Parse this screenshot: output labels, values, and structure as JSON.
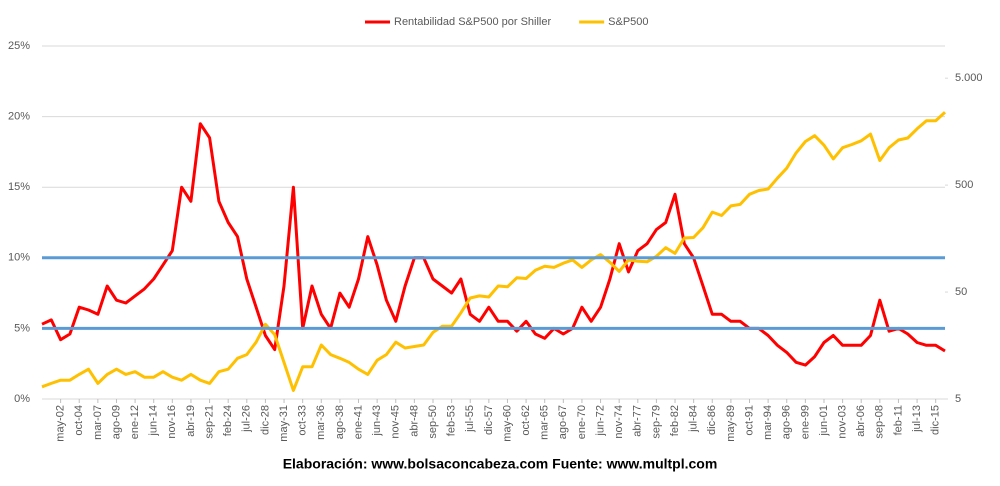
{
  "chart_data": {
    "type": "line",
    "categories": [
      null,
      null,
      "may-02",
      null,
      "oct-04",
      null,
      "mar-07",
      null,
      "ago-09",
      null,
      "ene-12",
      null,
      "jun-14",
      null,
      "nov-16",
      null,
      "abr-19",
      null,
      "sep-21",
      null,
      "feb-24",
      null,
      "jul-26",
      null,
      "dic-28",
      null,
      "may-31",
      null,
      "oct-33",
      null,
      "mar-36",
      null,
      "ago-38",
      null,
      "ene-41",
      null,
      "jun-43",
      null,
      "nov-45",
      null,
      "abr-48",
      null,
      "sep-50",
      null,
      "feb-53",
      null,
      "jul-55",
      null,
      "dic-57",
      null,
      "may-60",
      null,
      "oct-62",
      null,
      "mar-65",
      null,
      "ago-67",
      null,
      "ene-70",
      null,
      "jun-72",
      null,
      "nov-74",
      null,
      "abr-77",
      null,
      "sep-79",
      null,
      "feb-82",
      null,
      "jul-84",
      null,
      "dic-86",
      null,
      "may-89",
      null,
      "oct-91",
      null,
      "mar-94",
      null,
      "ago-96",
      null,
      "ene-99",
      null,
      "jun-01",
      null,
      "nov-03",
      null,
      "abr-06",
      null,
      "sep-08",
      null,
      "feb-11",
      null,
      "jul-13",
      null,
      "dic-15",
      null
    ],
    "series": [
      {
        "name": "Rentabilidad S&P500 por Shiller",
        "color": "#ff0000",
        "values": [
          5.3,
          5.6,
          4.2,
          4.6,
          6.5,
          6.3,
          6.0,
          8.0,
          7.0,
          6.8,
          7.3,
          7.8,
          8.5,
          9.5,
          10.5,
          15.0,
          14.0,
          19.5,
          18.5,
          14.0,
          12.5,
          11.5,
          8.5,
          6.5,
          4.5,
          3.5,
          8.0,
          15.0,
          5.0,
          8.0,
          6.0,
          5.0,
          7.5,
          6.5,
          8.5,
          11.5,
          9.5,
          7.0,
          5.5,
          8.0,
          10.0,
          10.0,
          8.5,
          8.0,
          7.5,
          8.5,
          6.0,
          5.5,
          6.5,
          5.5,
          5.5,
          4.8,
          5.5,
          4.6,
          4.3,
          5.0,
          4.6,
          5.0,
          6.5,
          5.5,
          6.5,
          8.5,
          11.0,
          9.0,
          10.5,
          11.0,
          12.0,
          12.5,
          14.5,
          11.0,
          10.0,
          8.0,
          6.0,
          6.0,
          5.5,
          5.5,
          5.0,
          5.0,
          4.5,
          3.8,
          3.3,
          2.6,
          2.4,
          3.0,
          4.0,
          4.5,
          3.8,
          3.8,
          3.8,
          4.5,
          7.0,
          4.8,
          5.0,
          4.6,
          4.0,
          3.8,
          3.8,
          3.4
        ]
      },
      {
        "name": "S&P500",
        "color": "#ffc000",
        "axis": "y2",
        "values": [
          6.5,
          7,
          7.5,
          7.5,
          8.5,
          9.5,
          7,
          8.5,
          9.5,
          8.5,
          9,
          8,
          8,
          9,
          8,
          7.5,
          8.5,
          7.5,
          7,
          9,
          9.5,
          12,
          13,
          17,
          25,
          20,
          11,
          6,
          10,
          10,
          16,
          13,
          12,
          11,
          9.5,
          8.5,
          11.5,
          13,
          17,
          15,
          15.5,
          16,
          21,
          24,
          24,
          32,
          44,
          46,
          45,
          57,
          56,
          68,
          67,
          80,
          87,
          85,
          93,
          100,
          85,
          100,
          112,
          95,
          78,
          100,
          97,
          96,
          108,
          130,
          115,
          160,
          162,
          200,
          280,
          260,
          320,
          330,
          410,
          445,
          460,
          580,
          720,
          1000,
          1280,
          1450,
          1180,
          880,
          1120,
          1200,
          1300,
          1500,
          850,
          1120,
          1320,
          1380,
          1680,
          2000,
          2000,
          2400
        ]
      }
    ],
    "ylim": [
      0,
      25
    ],
    "yticks": [
      {
        "value": 0,
        "label": "0%"
      },
      {
        "value": 5,
        "label": "5%"
      },
      {
        "value": 10,
        "label": "10%"
      },
      {
        "value": 15,
        "label": "15%"
      },
      {
        "value": 20,
        "label": "20%"
      },
      {
        "value": 25,
        "label": "25%"
      }
    ],
    "y2lim": [
      5,
      10000
    ],
    "y2log": true,
    "y2ticks": [
      5,
      50,
      500,
      {
        "value": 5000,
        "label": "5.000"
      }
    ],
    "grid": true,
    "reference_lines": {
      "values": [
        10,
        5
      ],
      "color": "#5b9bd5"
    },
    "legend": "top",
    "source": "Elaboración:  www.bolsaconcabeza.com  Fuente: www.multpl.com"
  }
}
